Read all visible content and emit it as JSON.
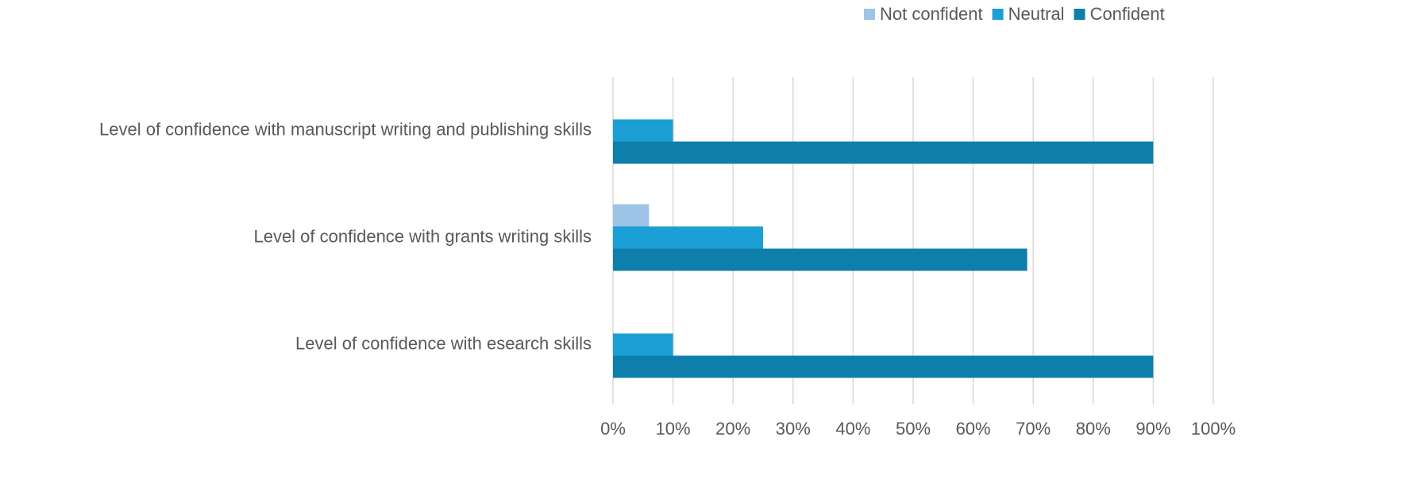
{
  "chart_data": {
    "type": "hbar",
    "categories": [
      "Level of confidence with manuscript writing and publishing skills",
      "Level of confidence with grants writing skills",
      "Level of confidence with esearch skills"
    ],
    "series": [
      {
        "name": "Not confident",
        "color": "#9dc3e6",
        "values": [
          0,
          6,
          0
        ]
      },
      {
        "name": "Neutral",
        "color": "#1c9fd5",
        "values": [
          10,
          25,
          10
        ]
      },
      {
        "name": "Confident",
        "color": "#0e7eab",
        "values": [
          90,
          69,
          90
        ]
      }
    ],
    "xlim": [
      0,
      100
    ],
    "xticks": [
      {
        "value": 0,
        "label": "0%"
      },
      {
        "value": 10,
        "label": "10%"
      },
      {
        "value": 20,
        "label": "20%"
      },
      {
        "value": 30,
        "label": "30%"
      },
      {
        "value": 40,
        "label": "40%"
      },
      {
        "value": 50,
        "label": "50%"
      },
      {
        "value": 60,
        "label": "60%"
      },
      {
        "value": 70,
        "label": "70%"
      },
      {
        "value": 80,
        "label": "80%"
      },
      {
        "value": 90,
        "label": "90%"
      },
      {
        "value": 100,
        "label": "100%"
      }
    ],
    "grid": true,
    "legend": "top-right"
  }
}
